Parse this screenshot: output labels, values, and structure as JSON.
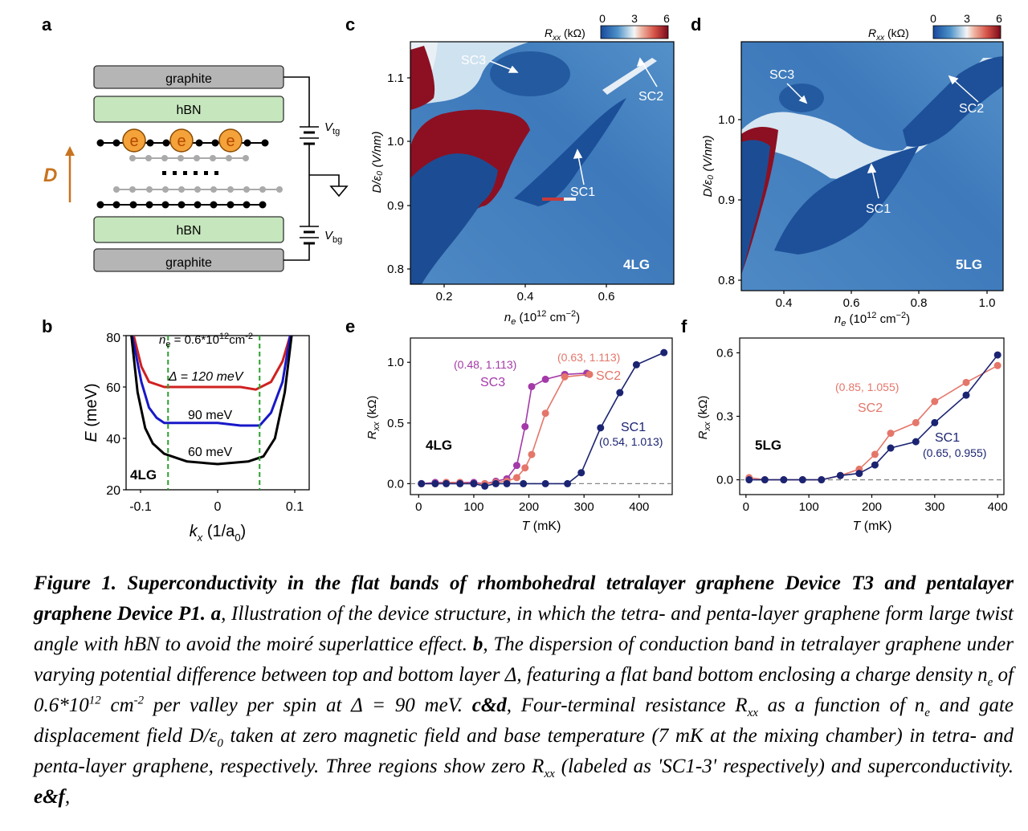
{
  "panels": {
    "a": {
      "letter": "a",
      "layers": {
        "graphite_top": "graphite",
        "hbn_top": "hBN",
        "hbn_bottom": "hBN",
        "graphite_bottom": "graphite"
      },
      "electron": "e",
      "d_label": "D",
      "vtg": "V",
      "vtg_sub": "tg",
      "vbg": "V",
      "vbg_sub": "bg"
    },
    "b": {
      "letter": "b",
      "density_label": "n",
      "density_sub": "e",
      "density_value": " = 0.6*10",
      "density_exp": "12",
      "density_unit": "cm",
      "density_unit_exp": "-2",
      "delta_label": "Δ = 120 meV",
      "label_90": "90 meV",
      "label_60": "60 meV",
      "device": "4LG",
      "ylabel": "E (meV)",
      "xlabel": "k",
      "xlabel_sub": "x",
      "xlabel_rest": " (1/a",
      "xlabel_sub2": "0",
      "xlabel_end": ")",
      "yticks": [
        "20",
        "40",
        "60",
        "80"
      ],
      "xticks": [
        "-0.1",
        "0",
        "0.1"
      ]
    },
    "c": {
      "letter": "c",
      "colorbar_label": "R",
      "colorbar_sub": "xx",
      "colorbar_unit": " (kΩ)",
      "colorbar_ticks": [
        "0",
        "3",
        "6"
      ],
      "labels": {
        "sc1": "SC1",
        "sc2": "SC2",
        "sc3": "SC3"
      },
      "device": "4LG",
      "ylabel": "D/ε₀ (V/nm)",
      "xlabel": "n",
      "xlabel_sub": "e",
      "xlabel_unit": " (10",
      "xlabel_exp": "12",
      "xlabel_unit2": " cm",
      "xlabel_exp2": "−2",
      "xlabel_end": ")",
      "yticks": [
        "0.8",
        "0.9",
        "1.0",
        "1.1"
      ],
      "xticks": [
        "0.2",
        "0.4",
        "0.6"
      ]
    },
    "d": {
      "letter": "d",
      "colorbar_label": "R",
      "colorbar_sub": "xx",
      "colorbar_unit": " (kΩ)",
      "colorbar_ticks": [
        "0",
        "3",
        "6"
      ],
      "labels": {
        "sc1": "SC1",
        "sc2": "SC2",
        "sc3": "SC3"
      },
      "device": "5LG",
      "ylabel": "D/ε₀ (V/nm)",
      "xlabel": "n",
      "xlabel_sub": "e",
      "xlabel_unit": " (10",
      "xlabel_exp": "12",
      "xlabel_unit2": " cm",
      "xlabel_exp2": "−2",
      "xlabel_end": ")",
      "yticks": [
        "0.8",
        "0.9",
        "1.0"
      ],
      "xticks": [
        "0.4",
        "0.6",
        "0.8",
        "1.0"
      ]
    },
    "e": {
      "letter": "e",
      "device": "4LG",
      "ylabel": "R",
      "ylabel_sub": "xx",
      "ylabel_unit": " (kΩ)",
      "xlabel": "T",
      "xlabel_unit": " (mK)",
      "yticks": [
        "0.0",
        "0.5",
        "1.0"
      ],
      "xticks": [
        "0",
        "100",
        "200",
        "300",
        "400"
      ],
      "annotations": {
        "sc3_coord": "(0.48, 1.113)",
        "sc3": "SC3",
        "sc2_coord": "(0.63, 1.113)",
        "sc2": "SC2",
        "sc1": "SC1",
        "sc1_coord": "(0.54, 1.013)"
      }
    },
    "f": {
      "letter": "f",
      "device": "5LG",
      "ylabel": "R",
      "ylabel_sub": "xx",
      "ylabel_unit": " (kΩ)",
      "xlabel": "T",
      "xlabel_unit": " (mK)",
      "yticks": [
        "0.0",
        "0.3",
        "0.6"
      ],
      "xticks": [
        "0",
        "100",
        "200",
        "300",
        "400"
      ],
      "annotations": {
        "sc2_coord": "(0.85, 1.055)",
        "sc2": "SC2",
        "sc1": "SC1",
        "sc1_coord": "(0.65, 0.955)"
      }
    }
  },
  "chart_data": [
    {
      "panel": "b",
      "type": "line",
      "xlim": [
        -0.12,
        0.12
      ],
      "ylim": [
        20,
        80
      ],
      "series": [
        {
          "color": "#d02020",
          "points": [
            [
              -0.11,
              80
            ],
            [
              -0.1,
              68
            ],
            [
              -0.09,
              62
            ],
            [
              -0.07,
              60
            ],
            [
              -0.03,
              60
            ],
            [
              0,
              60
            ],
            [
              0.03,
              60
            ],
            [
              0.05,
              59
            ],
            [
              0.07,
              62
            ],
            [
              0.085,
              70
            ],
            [
              0.095,
              80
            ]
          ]
        },
        {
          "color": "#1818c8",
          "points": [
            [
              -0.112,
              80
            ],
            [
              -0.1,
              62
            ],
            [
              -0.09,
              52
            ],
            [
              -0.08,
              48
            ],
            [
              -0.07,
              46
            ],
            [
              -0.03,
              46
            ],
            [
              0,
              46
            ],
            [
              0.03,
              45
            ],
            [
              0.055,
              45
            ],
            [
              0.07,
              50
            ],
            [
              0.085,
              62
            ],
            [
              0.095,
              80
            ]
          ]
        },
        {
          "color": "#000000",
          "points": [
            [
              -0.113,
              80
            ],
            [
              -0.105,
              58
            ],
            [
              -0.095,
              44
            ],
            [
              -0.085,
              38
            ],
            [
              -0.07,
              34
            ],
            [
              -0.04,
              31
            ],
            [
              0,
              30
            ],
            [
              0.04,
              31
            ],
            [
              0.06,
              33
            ],
            [
              0.075,
              40
            ],
            [
              0.088,
              58
            ],
            [
              0.097,
              80
            ]
          ]
        }
      ],
      "vlines": [
        -0.065,
        0.055
      ],
      "vline_color": "#2ca02c"
    },
    {
      "panel": "e",
      "type": "line",
      "xlim": [
        -15,
        460
      ],
      "ylim": [
        -0.09,
        1.2
      ],
      "x_ticks": [
        0,
        100,
        200,
        300,
        400
      ],
      "y_ticks": [
        0.0,
        0.5,
        1.0
      ],
      "series": [
        {
          "name": "SC3",
          "color": "#a33aa8",
          "x": [
            5,
            30,
            50,
            75,
            100,
            120,
            140,
            160,
            178,
            193,
            205,
            230,
            265,
            305
          ],
          "y": [
            0.0,
            0.01,
            0.01,
            0.01,
            0.01,
            0.0,
            0.02,
            0.04,
            0.15,
            0.47,
            0.8,
            0.86,
            0.9,
            0.91
          ]
        },
        {
          "name": "SC2",
          "color": "#e4766a",
          "x": [
            5,
            30,
            50,
            75,
            100,
            120,
            140,
            160,
            178,
            193,
            205,
            230,
            265,
            310
          ],
          "y": [
            0.0,
            0.0,
            0.01,
            0.01,
            0.0,
            0.0,
            0.01,
            0.02,
            0.05,
            0.13,
            0.24,
            0.58,
            0.88,
            0.9
          ]
        },
        {
          "name": "SC1",
          "color": "#1b2472",
          "x": [
            5,
            30,
            50,
            75,
            100,
            120,
            140,
            160,
            190,
            230,
            270,
            295,
            330,
            365,
            395,
            445
          ],
          "y": [
            0.0,
            0.0,
            0.0,
            0.0,
            0.0,
            -0.02,
            0.0,
            0.0,
            0.0,
            0.0,
            0.0,
            0.09,
            0.46,
            0.75,
            0.98,
            1.08
          ]
        }
      ]
    },
    {
      "panel": "f",
      "type": "line",
      "xlim": [
        -10,
        410
      ],
      "ylim": [
        -0.07,
        0.67
      ],
      "x_ticks": [
        0,
        100,
        200,
        300,
        400
      ],
      "y_ticks": [
        0.0,
        0.3,
        0.6
      ],
      "series": [
        {
          "name": "SC2",
          "color": "#e4766a",
          "x": [
            5,
            30,
            60,
            90,
            120,
            150,
            180,
            205,
            230,
            270,
            300,
            350,
            400
          ],
          "y": [
            0.01,
            0.0,
            0.0,
            0.0,
            0.0,
            0.02,
            0.05,
            0.12,
            0.22,
            0.27,
            0.37,
            0.46,
            0.54
          ]
        },
        {
          "name": "SC1",
          "color": "#1b2472",
          "x": [
            5,
            30,
            60,
            90,
            120,
            150,
            180,
            205,
            230,
            270,
            300,
            350,
            400
          ],
          "y": [
            0.0,
            0.0,
            0.0,
            0.0,
            0.0,
            0.02,
            0.03,
            0.07,
            0.15,
            0.18,
            0.27,
            0.4,
            0.59
          ]
        }
      ]
    }
  ],
  "caption": {
    "title": "Figure 1. Superconductivity in the flat bands of rhombohedral tetralayer graphene Device T3 and pentalayer graphene Device P1.",
    "a_letter": "a",
    "a_text": ", Illustration of the device structure, in which the tetra- and penta-layer graphene form large twist angle with hBN to avoid the moiré superlattice effect.",
    "b_letter": "b",
    "b_text_1": ", The dispersion of conduction band in tetralayer graphene under varying potential difference between top and bottom layer Δ, featuring a flat band bottom enclosing a charge density n",
    "b_sub": "e",
    "b_text_2": " of 0.6*10",
    "b_sup": "12",
    "b_text_3": " cm",
    "b_sup2": "-2",
    "b_text_4": " per valley per spin at Δ = 90 meV.",
    "cd_letter": "c&d",
    "cd_text_1": ", Four-terminal resistance R",
    "cd_sub1": "xx",
    "cd_text_2": " as a function of n",
    "cd_sub2": "e",
    "cd_text_3": " and gate displacement field D/ε",
    "cd_sub3": "0",
    "cd_text_4": " taken at zero magnetic field and base temperature (7 mK at the mixing chamber) in tetra- and penta-layer graphene, respectively. Three regions show zero R",
    "cd_sub4": "xx",
    "cd_text_5": " (labeled as 'SC1-3' respectively) and superconductivity.",
    "ef_letter": "e&f",
    "ef_text": ","
  }
}
